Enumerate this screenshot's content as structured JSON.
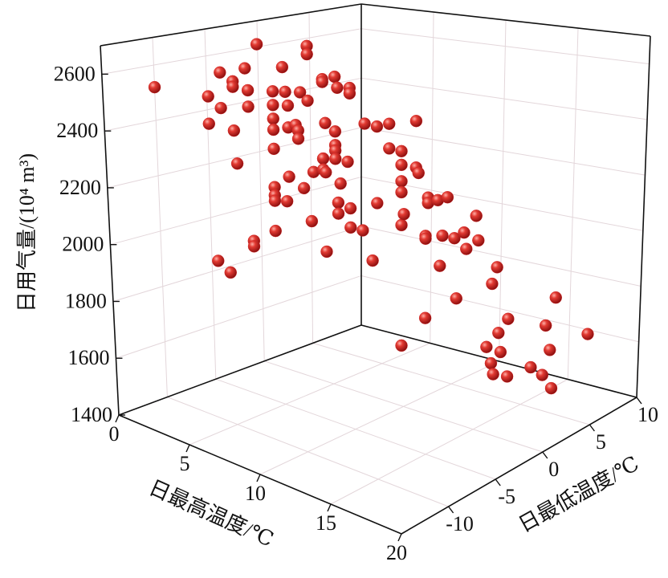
{
  "chart_data": {
    "type": "scatter3d",
    "x_label": "日最高温度/℃",
    "y_label": "日最低温度/℃",
    "z_label": "日用气量/(10⁴ m³)",
    "xlim": [
      0,
      20
    ],
    "ylim": [
      -15,
      10
    ],
    "zlim": [
      1400,
      2700
    ],
    "xticks": [
      0,
      5,
      10,
      15,
      20
    ],
    "yticks": [
      -10,
      -5,
      0,
      5,
      10
    ],
    "zticks": [
      1400,
      1600,
      1800,
      2000,
      2200,
      2400,
      2600
    ],
    "grid": true,
    "color": "#d42323",
    "x": [
      0,
      3.3,
      5.3,
      5.3,
      1.8,
      2.8,
      4.3,
      1.3,
      2.3,
      2.3,
      2.9,
      1.8,
      2.9,
      3.9,
      4.4,
      5.0,
      5.3,
      3.9,
      4.5,
      5.9,
      5.9,
      6.4,
      6.5,
      7.0,
      7.0,
      3.9,
      3.9,
      4.5,
      4.8,
      4.9,
      4.9,
      1.3,
      2.3,
      3.9,
      6.0,
      6.4,
      6.4,
      6.4,
      6.4,
      5.9,
      6.9,
      2.4,
      4.5,
      5.5,
      5.9,
      6.0,
      6.6,
      3.9,
      3.9,
      3.9,
      5.1,
      4.4,
      6.5,
      7.0,
      6.5,
      5.4,
      3.9,
      3.0,
      3.0,
      6.0,
      7.0,
      7.5,
      1.5,
      2.0,
      7.6,
      8.1,
      8.6,
      9.7,
      8.6,
      9.1,
      9.1,
      9.7,
      9.8,
      9.1,
      9.1,
      8.1,
      10.2,
      10.2,
      10.6,
      11.0,
      9.2,
      9.1,
      12.2,
      10.1,
      10.1,
      10.8,
      11.3,
      11.7,
      12.3,
      11.8,
      7.9,
      10.7,
      13.1,
      12.9,
      11.4,
      10.1,
      15.6,
      13.6,
      15.2,
      17.0,
      13.2,
      12.7,
      15.4,
      9.1,
      13.3,
      12.9,
      13.0,
      14.6,
      15.1,
      13.6,
      15.5
    ],
    "y": [
      -10,
      -4.7,
      -2.7,
      -2.7,
      -6.2,
      -5.2,
      -3.7,
      -6.7,
      -5.7,
      -5.7,
      -5.1,
      -6.2,
      -5.1,
      -4.1,
      -3.6,
      -3.0,
      -2.7,
      -4.1,
      -3.5,
      -2.1,
      -2.1,
      -1.6,
      -1.5,
      -1.0,
      -1.0,
      -4.1,
      -4.1,
      -3.5,
      -3.2,
      -3.1,
      -3.1,
      -6.7,
      -5.7,
      -4.1,
      -2.0,
      -1.6,
      -1.6,
      -1.6,
      -1.6,
      -2.1,
      -1.1,
      -5.6,
      -3.5,
      -2.5,
      -2.1,
      -2.0,
      -1.4,
      -4.1,
      -4.1,
      -4.1,
      -2.9,
      -3.6,
      -1.5,
      -1.0,
      -1.5,
      -2.6,
      -4.1,
      -5.0,
      -5.0,
      -2.0,
      -1.0,
      -0.5,
      -6.5,
      -6.0,
      -0.4,
      0.1,
      0.6,
      1.7,
      0.6,
      1.1,
      1.1,
      1.7,
      1.8,
      1.1,
      1.1,
      0.1,
      2.2,
      2.2,
      2.6,
      3.0,
      1.2,
      1.1,
      4.2,
      2.1,
      2.1,
      2.8,
      3.3,
      3.7,
      4.3,
      3.8,
      -0.1,
      2.7,
      5.1,
      4.9,
      3.4,
      2.1,
      7.6,
      5.6,
      7.2,
      9.0,
      5.2,
      4.7,
      7.4,
      1.1,
      5.3,
      4.9,
      5.0,
      6.6,
      7.1,
      5.6,
      7.5
    ],
    "z": [
      2520,
      2680,
      2680,
      2650,
      2570,
      2590,
      2600,
      2480,
      2540,
      2520,
      2510,
      2440,
      2450,
      2510,
      2510,
      2510,
      2480,
      2460,
      2460,
      2560,
      2550,
      2570,
      2530,
      2530,
      2510,
      2410,
      2370,
      2380,
      2390,
      2370,
      2340,
      2380,
      2360,
      2300,
      2400,
      2370,
      2320,
      2300,
      2270,
      2270,
      2260,
      2240,
      2200,
      2220,
      2230,
      2220,
      2180,
      2160,
      2130,
      2110,
      2160,
      2110,
      2110,
      2090,
      2070,
      2040,
      2000,
      1960,
      1940,
      1930,
      2020,
      2010,
      1880,
      1840,
      2400,
      2390,
      2400,
      2410,
      2310,
      2300,
      2250,
      2240,
      2220,
      2190,
      2150,
      2110,
      2130,
      2110,
      2120,
      2130,
      2070,
      2030,
      2060,
      1990,
      1980,
      1990,
      1980,
      2000,
      1970,
      1940,
      1900,
      1880,
      1870,
      1810,
      1760,
      1690,
      1750,
      1680,
      1650,
      1610,
      1630,
      1580,
      1560,
      1590,
      1560,
      1520,
      1480,
      1500,
      1470,
      1470,
      1420
    ]
  }
}
